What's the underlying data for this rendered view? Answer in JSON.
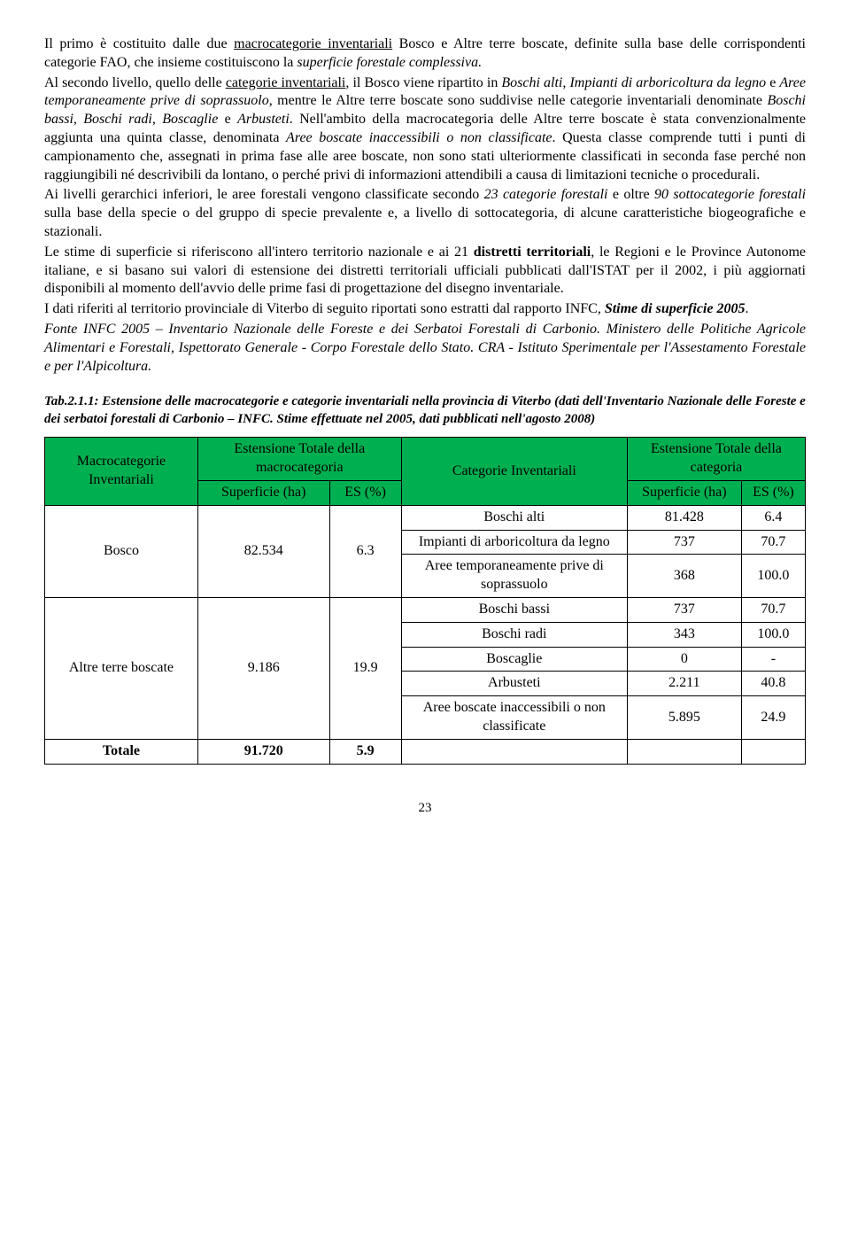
{
  "para1_a": "Il primo è costituito dalle due ",
  "para1_u1": "macrocategorie inventariali",
  "para1_b": " Bosco e Altre terre boscate, definite sulla base delle corrispondenti categorie FAO, che insieme costituiscono la ",
  "para1_i1": "superficie forestale complessiva.",
  "para2_a": "Al secondo livello, quello delle ",
  "para2_u1": "categorie inventariali",
  "para2_b": ", il Bosco viene ripartito in ",
  "para2_i1": "Boschi alti",
  "para2_c": ", ",
  "para2_i2": "Impianti di arboricoltura da legno",
  "para2_d": " e ",
  "para2_i3": "Aree temporaneamente prive di soprassuolo",
  "para2_e": ", mentre le Altre terre boscate sono suddivise nelle categorie inventariali denominate ",
  "para2_i4": "Boschi bassi",
  "para2_f": ", ",
  "para2_i5": "Boschi radi",
  "para2_g": ", ",
  "para2_i6": "Boscaglie",
  "para2_h": " e ",
  "para2_i7": "Arbusteti",
  "para2_j": ". Nell'ambito della macrocategoria delle Altre terre boscate è stata convenzionalmente aggiunta una quinta classe, denominata ",
  "para2_i8": "Aree boscate inaccessibili o non classificate",
  "para2_k": ". Questa classe comprende tutti i punti di campionamento che, assegnati in prima fase alle aree boscate, non sono stati ulteriormente classificati in seconda fase perché non raggiungibili né descrivibili da lontano, o perché privi di informazioni attendibili a causa di limitazioni tecniche o procedurali.",
  "para3_a": "Ai livelli gerarchici inferiori, le aree forestali vengono classificate secondo ",
  "para3_i1": "23 categorie forestali",
  "para3_b": " e oltre ",
  "para3_i2": "90 sottocategorie forestali",
  "para3_c": " sulla base della specie o del gruppo di specie prevalente e, a livello di sottocategoria, di alcune caratteristiche biogeografiche e stazionali.",
  "para4_a": "Le stime di superficie si riferiscono all'intero territorio nazionale e ai 21 ",
  "para4_b1": "distretti territoriali",
  "para4_b": ", le Regioni e le Province Autonome italiane, e si basano sui valori di estensione dei distretti territoriali ufficiali pubblicati dall'ISTAT per il 2002, i più aggiornati disponibili al momento dell'avvio delle prime fasi di progettazione del disegno inventariale.",
  "para5_a": "I dati riferiti al territorio provinciale di Viterbo di seguito riportati sono estratti dal rapporto INFC, ",
  "para5_i1": "Stime di superficie 2005",
  "para5_b": ".",
  "para6": "Fonte INFC 2005 – Inventario Nazionale delle Foreste e dei Serbatoi Forestali di Carbonio. Ministero delle Politiche Agricole Alimentari e Forestali, Ispettorato Generale - Corpo Forestale dello Stato. CRA - Istituto Sperimentale per l'Assestamento Forestale e per l'Alpicoltura.",
  "caption": "Tab.2.1.1: Estensione delle macrocategorie e categorie inventariali nella provincia di Viterbo (dati dell'Inventario Nazionale delle Foreste e dei serbatoi forestali di Carbonio – INFC. Stime effettuate nel 2005, dati pubblicati nell'agosto 2008)",
  "table": {
    "header_bg": "#00b050",
    "h1": "Macrocategorie Inventariali",
    "h2": "Estensione Totale della macrocategoria",
    "h3": "Categorie Inventariali",
    "h4": "Estensione Totale della categoria",
    "sh_sup": "Superficie (ha)",
    "sh_es": "ES (%)",
    "rows": {
      "bosco_label": "Bosco",
      "bosco_sup": "82.534",
      "bosco_es": "6.3",
      "c_boschi_alti": "Boschi alti",
      "c_boschi_alti_sup": "81.428",
      "c_boschi_alti_es": "6.4",
      "c_impianti": "Impianti di arboricoltura da legno",
      "c_impianti_sup": "737",
      "c_impianti_es": "70.7",
      "c_aree_temp": "Aree temporaneamente prive di soprassuolo",
      "c_aree_temp_sup": "368",
      "c_aree_temp_es": "100.0",
      "altre_label": "Altre terre boscate",
      "altre_sup": "9.186",
      "altre_es": "19.9",
      "c_boschi_bassi": "Boschi bassi",
      "c_boschi_bassi_sup": "737",
      "c_boschi_bassi_es": "70.7",
      "c_boschi_radi": "Boschi radi",
      "c_boschi_radi_sup": "343",
      "c_boschi_radi_es": "100.0",
      "c_boscaglie": "Boscaglie",
      "c_boscaglie_sup": "0",
      "c_boscaglie_es": "-",
      "c_arbusteti": "Arbusteti",
      "c_arbusteti_sup": "2.211",
      "c_arbusteti_es": "40.8",
      "c_aree_inacc": "Aree boscate inaccessibili o non classificate",
      "c_aree_inacc_sup": "5.895",
      "c_aree_inacc_es": "24.9",
      "totale_label": "Totale",
      "totale_sup": "91.720",
      "totale_es": "5.9"
    }
  },
  "page_num": "23"
}
